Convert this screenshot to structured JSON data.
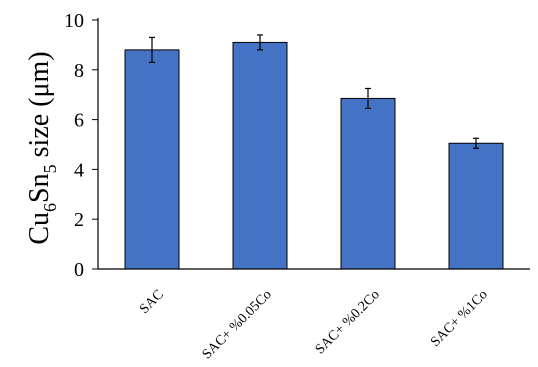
{
  "chart_data": {
    "type": "bar",
    "categories": [
      "SAC",
      "SAC+ %0.05Co",
      "SAC+ %0.2Co",
      "SAC+ %1Co"
    ],
    "values": [
      8.8,
      9.1,
      6.85,
      5.05
    ],
    "errors": [
      0.5,
      0.3,
      0.4,
      0.2
    ],
    "ylim": [
      0,
      10
    ],
    "yticks": [
      "0",
      "2",
      "4",
      "6",
      "8",
      "10"
    ],
    "ylabel": {
      "part1": "Cu",
      "sub1": "6",
      "part2": "Sn",
      "sub2": "5",
      "part3": " size (μm)"
    },
    "xlabel": "",
    "title": "",
    "bar_color": "#4472c4",
    "bar_edge_color": "#000000",
    "grid": false,
    "legend": "none"
  }
}
